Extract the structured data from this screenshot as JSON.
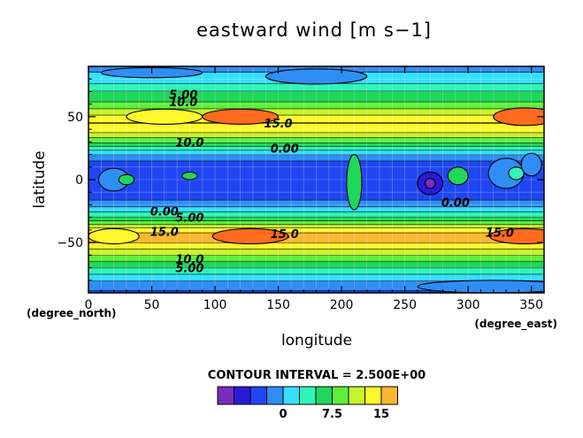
{
  "chart_data": {
    "type": "contour",
    "title": "eastward wind [m s−1]",
    "xlabel": "longitude",
    "ylabel": "latitude",
    "x_unit_label": "(degree_east)",
    "y_unit_label": "(degree_north)",
    "xlim": [
      0,
      360
    ],
    "ylim": [
      -90,
      90
    ],
    "x_ticks": [
      "0",
      "50",
      "100",
      "150",
      "200",
      "250",
      "300",
      "350"
    ],
    "y_ticks": [
      "50",
      "0",
      "−50"
    ],
    "y_tick_values": [
      50,
      0,
      -50
    ],
    "contour_labels": [
      "5.00",
      "10.0",
      "15.0",
      "10.0",
      "0.00",
      "0.00",
      "0.00",
      "5.00",
      "15.0",
      "15.0",
      "15.0",
      "10.0",
      "5.00"
    ],
    "contour_interval_text": "CONTOUR INTERVAL = 2.500E+00",
    "colorbar": {
      "levels": [
        -7.5,
        -5,
        -2.5,
        0,
        2.5,
        5,
        7.5,
        10,
        12.5,
        15,
        17.5
      ],
      "tick_labels": [
        "0",
        "7.5",
        "15"
      ],
      "tick_values": [
        0,
        7.5,
        15
      ],
      "colors": [
        "#7a2dbf",
        "#2a1ad8",
        "#1f46f2",
        "#2f8ef5",
        "#34e0ff",
        "#2ef5b8",
        "#20d75a",
        "#5cf03a",
        "#c7f52c",
        "#fff82a",
        "#ffb630",
        "#ff6a1e",
        "#f51c26",
        "#ffaab4"
      ]
    },
    "zonal_mean_profile": {
      "latitude": [
        -90,
        -80,
        -70,
        -60,
        -50,
        -45,
        -40,
        -30,
        -20,
        -10,
        0,
        10,
        20,
        30,
        40,
        45,
        50,
        60,
        70,
        80,
        90
      ],
      "u": [
        -3,
        0,
        5,
        10,
        15,
        16,
        14,
        5,
        -1,
        -5,
        -4,
        -5,
        0,
        8,
        14,
        15,
        13,
        8,
        5,
        1,
        -1
      ]
    }
  }
}
